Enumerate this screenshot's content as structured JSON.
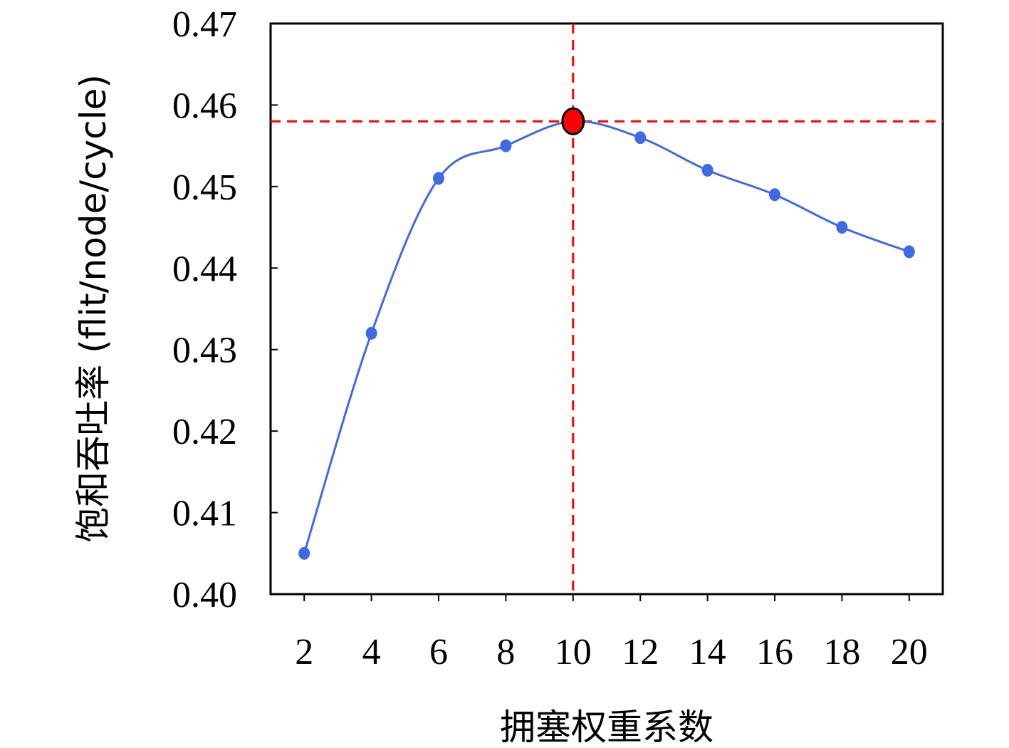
{
  "chart_data": {
    "type": "line",
    "x": [
      2,
      4,
      6,
      8,
      10,
      12,
      14,
      16,
      18,
      20
    ],
    "series": [
      {
        "values": [
          0.405,
          0.432,
          0.451,
          0.455,
          0.458,
          0.456,
          0.452,
          0.449,
          0.445,
          0.442
        ],
        "color": "#4169E1"
      }
    ],
    "xticks": [
      "2",
      "4",
      "6",
      "8",
      "10",
      "12",
      "14",
      "16",
      "18",
      "20"
    ],
    "yticks": [
      "0.40",
      "0.41",
      "0.42",
      "0.43",
      "0.44",
      "0.45",
      "0.46",
      "0.47"
    ],
    "xlabel": "拥塞权重系数",
    "ylabel": "饱和吞吐率 (flit/node/cycle)",
    "xlim": [
      1,
      21
    ],
    "ylim": [
      0.4,
      0.47
    ],
    "highlight": {
      "x": 10,
      "y": 0.458,
      "color": "#FF0000",
      "reference_line_color": "#FF0000"
    },
    "grid": false
  }
}
